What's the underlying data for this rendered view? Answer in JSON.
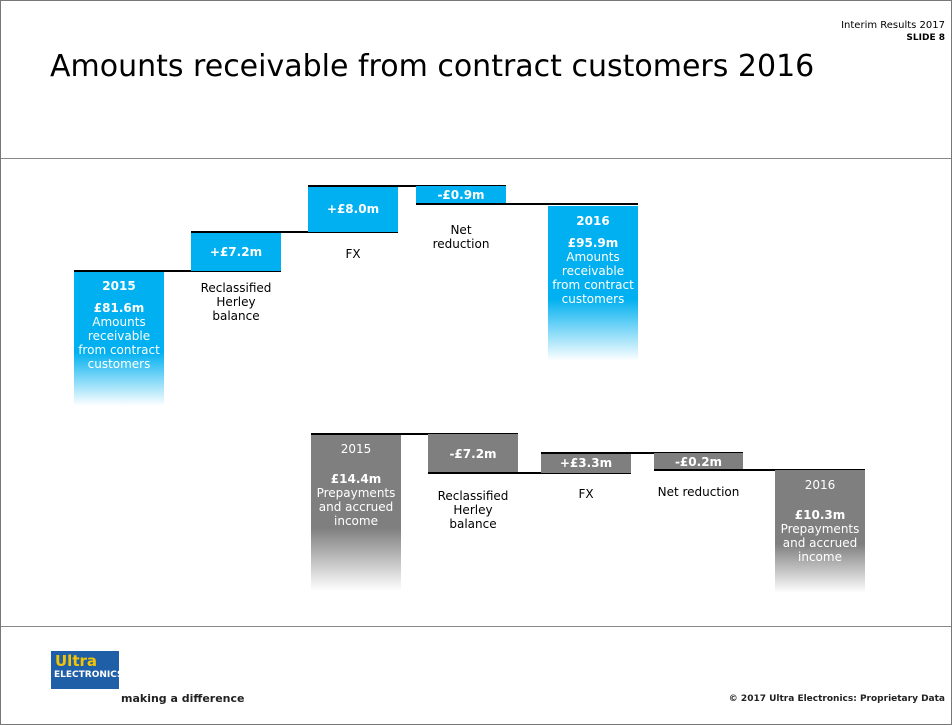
{
  "header": {
    "title": "Amounts receivable from contract customers 2016",
    "event": "Interim Results 2017",
    "slide": "SLIDE 8"
  },
  "waterfalls": [
    {
      "steps": [
        {
          "label": "2015",
          "value": "£81.6m",
          "caption": "Amounts receivable from contract customers"
        },
        {
          "value": "+£7.2m",
          "caption": "Reclassified Herley balance"
        },
        {
          "value": "+£8.0m",
          "caption": "FX"
        },
        {
          "value": "-£0.9m",
          "caption": "Net reduction"
        },
        {
          "label": "2016",
          "value": "£95.9m",
          "caption": "Amounts receivable from contract customers"
        }
      ]
    },
    {
      "steps": [
        {
          "label": "2015",
          "value": "£14.4m",
          "caption": "Prepayments and accrued income"
        },
        {
          "value": "-£7.2m",
          "caption": "Reclassified Herley balance"
        },
        {
          "value": "+£3.3m",
          "caption": "FX"
        },
        {
          "value": "-£0.2m",
          "caption": "Net reduction"
        },
        {
          "label": "2016",
          "value": "£10.3m",
          "caption": "Prepayments and accrued income"
        }
      ]
    }
  ],
  "footer": {
    "logo_top": "Ultra",
    "logo_bottom": "ELECTRONICS",
    "tagline": "making a difference",
    "copyright": "© 2017 Ultra Electronics: Proprietary Data"
  }
}
